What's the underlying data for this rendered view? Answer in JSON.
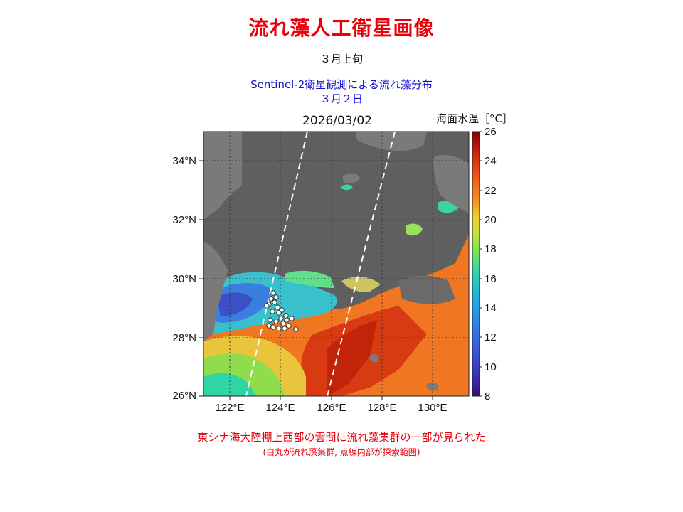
{
  "title": "流れ藻人工衛星画像",
  "period": "３月上旬",
  "subtitle_line1": "Sentinel-2衛星観測による流れ藻分布",
  "subtitle_line2": "３月２日",
  "map": {
    "date_label": "2026/03/02",
    "lat_ticks": [
      "26°N",
      "28°N",
      "30°N",
      "32°N",
      "34°N"
    ],
    "lon_ticks": [
      "122°E",
      "124°E",
      "126°E",
      "128°E",
      "130°E"
    ],
    "lon_range": [
      120.5,
      131
    ],
    "lat_range": [
      26,
      35
    ],
    "colors": {
      "land": "#676767",
      "cloud": "#8c8c8c",
      "marker": "#ffffff"
    }
  },
  "colorbar": {
    "title": "海面水温［°C］",
    "ticks": [
      "26",
      "24",
      "22",
      "20",
      "18",
      "16",
      "14",
      "12",
      "10",
      "8"
    ],
    "range": [
      8,
      26
    ],
    "colormap": "jet-like"
  },
  "caption_line1": "東シナ海大陸棚上西部の雲間に流れ藻集群の一部が見られた",
  "caption_line2": "(白丸が流れ藻集群, 点線内部が探索範囲)"
}
